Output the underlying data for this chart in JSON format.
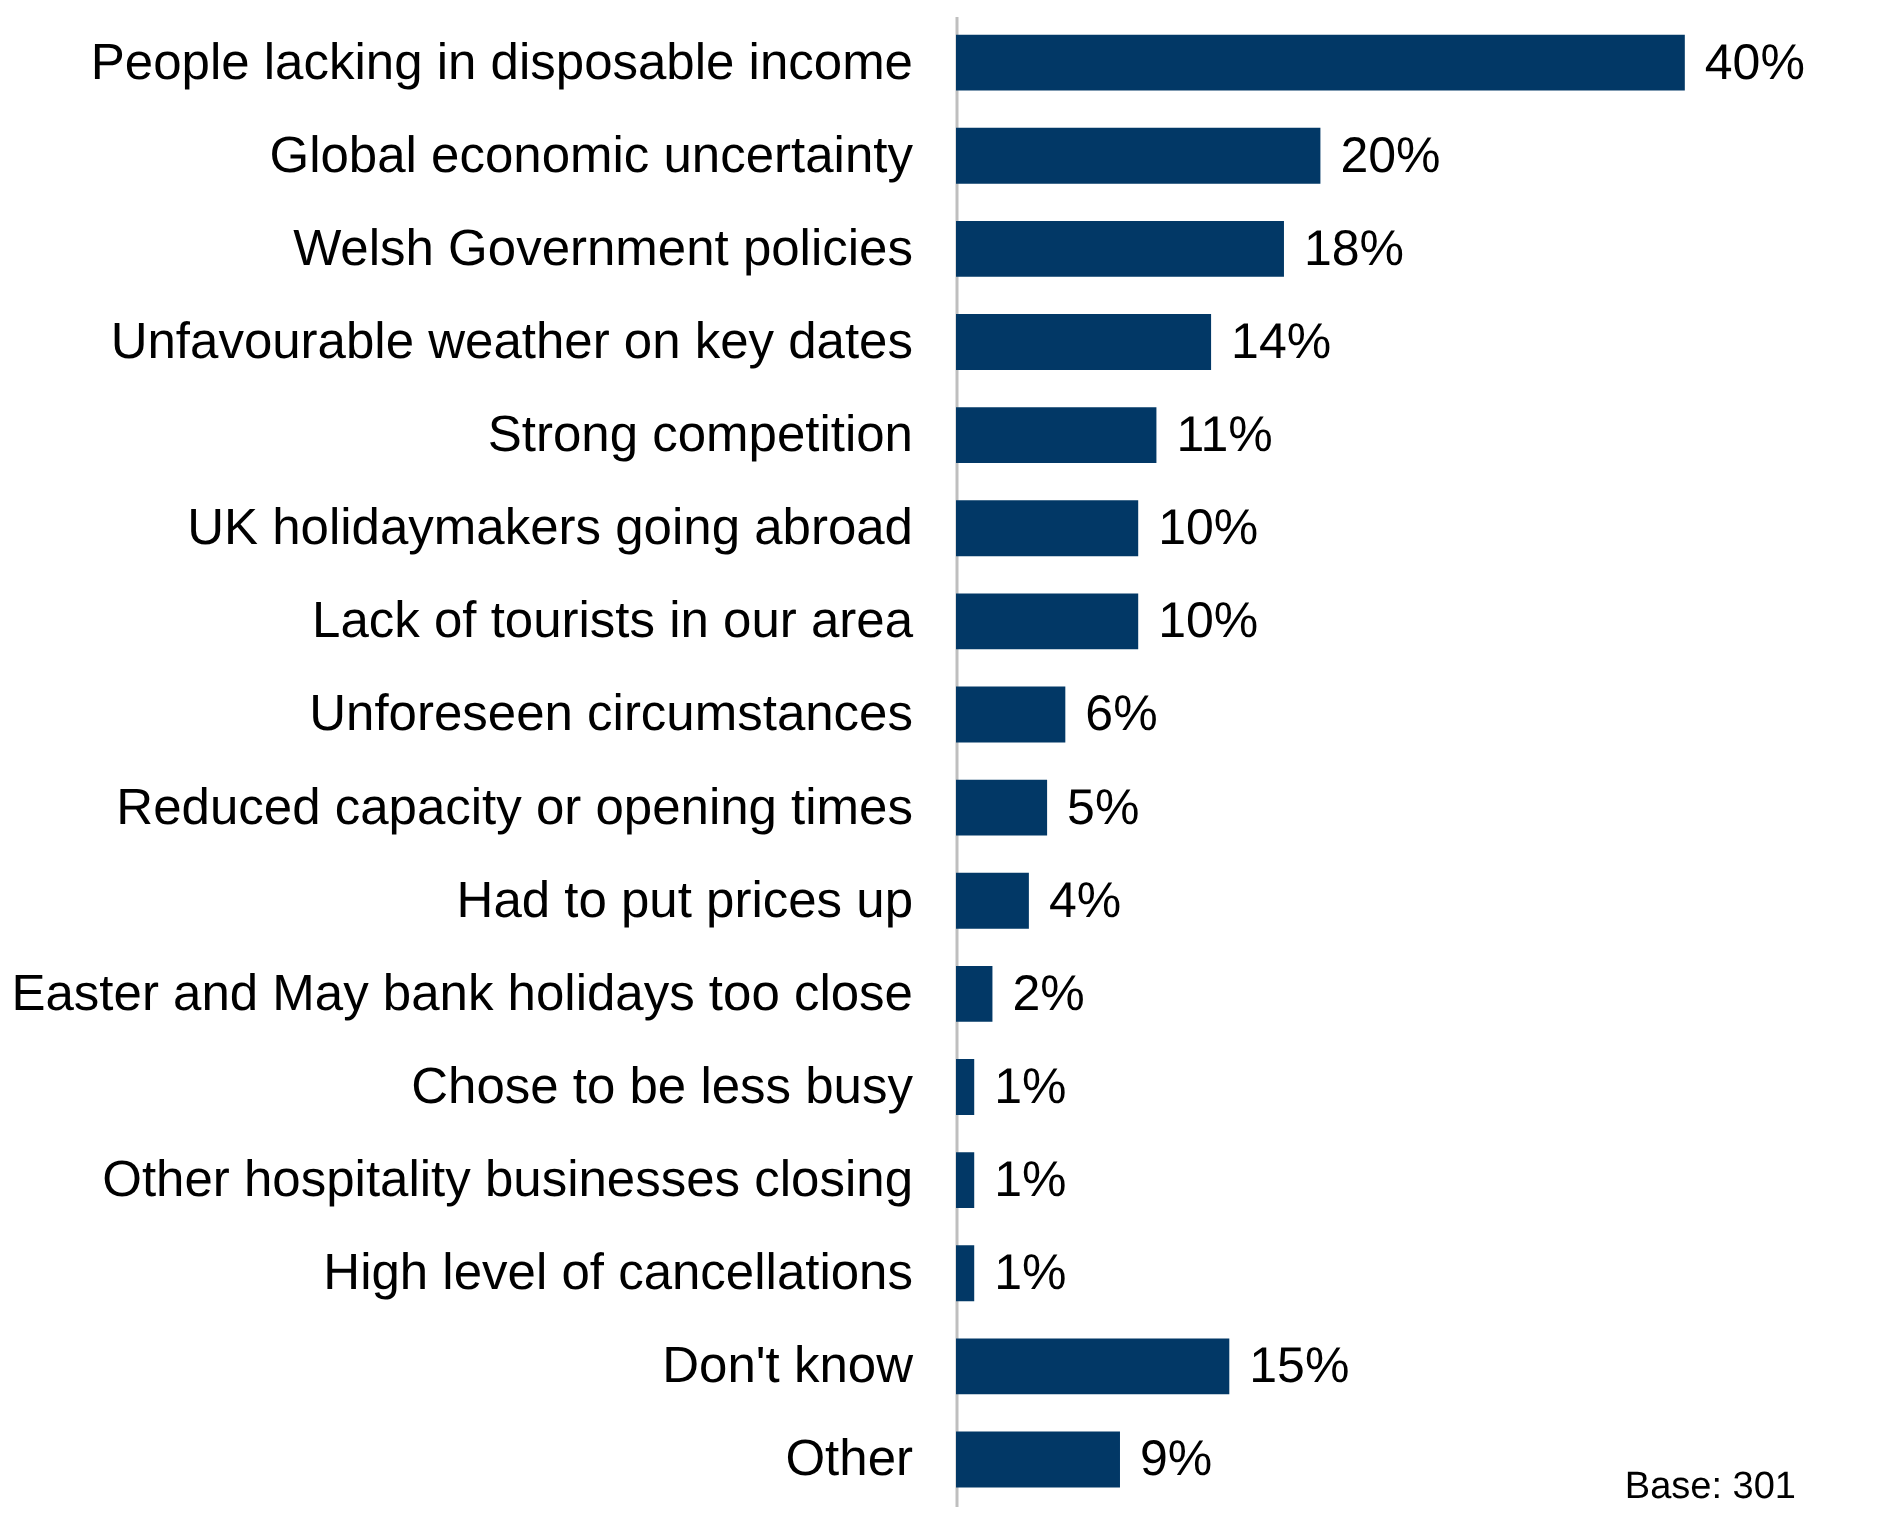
{
  "chart_data": {
    "type": "bar",
    "orientation": "horizontal",
    "categories": [
      "People lacking in disposable income",
      "Global economic uncertainty",
      "Welsh Government policies",
      "Unfavourable weather on key dates",
      "Strong competition",
      "UK holidaymakers going abroad",
      "Lack of tourists in our area",
      "Unforeseen circumstances",
      "Reduced capacity or opening times",
      "Had to put prices up",
      "Easter and May bank holidays too close",
      "Chose to be less busy",
      "Other hospitality businesses closing",
      "High level of cancellations",
      "Don't know",
      "Other"
    ],
    "values": [
      40,
      20,
      18,
      14,
      11,
      10,
      10,
      6,
      5,
      4,
      2,
      1,
      1,
      1,
      15,
      9
    ],
    "value_labels": [
      "40%",
      "20%",
      "18%",
      "14%",
      "11%",
      "10%",
      "10%",
      "6%",
      "5%",
      "4%",
      "2%",
      "1%",
      "1%",
      "1%",
      "15%",
      "9%"
    ],
    "color": "#023866",
    "annotations": [
      "Base: 301"
    ],
    "grid": false
  }
}
